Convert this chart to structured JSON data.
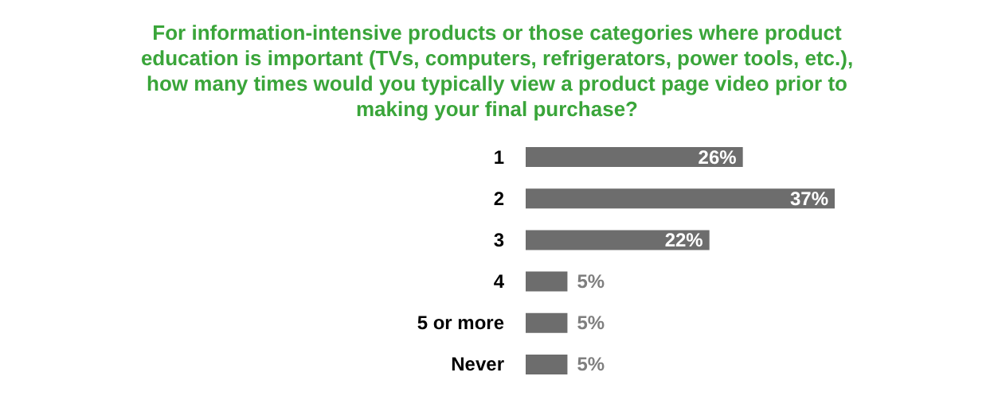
{
  "chart_data": {
    "type": "bar",
    "orientation": "horizontal",
    "title": "For information-intensive products or those categories where product education is important (TVs, computers, refrigerators, power tools, etc.), how many times would you typically view a product page video prior to making your final purchase?",
    "categories": [
      "1",
      "2",
      "3",
      "4",
      "5 or more",
      "Never"
    ],
    "values": [
      26,
      37,
      22,
      5,
      5,
      5
    ],
    "value_labels": [
      "26%",
      "37%",
      "22%",
      "5%",
      "5%",
      "5%"
    ],
    "color": "#6d6d6d"
  }
}
